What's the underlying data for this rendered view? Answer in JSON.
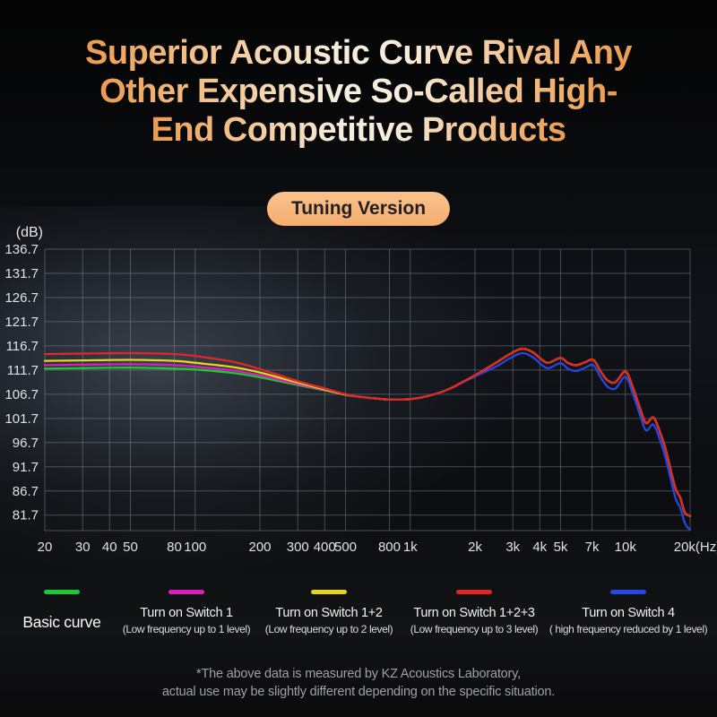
{
  "title": {
    "line1": "Superior Acoustic Curve Rival Any",
    "line2": "Other Expensive So-Called High-",
    "line3": "End Competitive Products"
  },
  "badge": {
    "label": "Tuning Version"
  },
  "chart_data": {
    "type": "line",
    "x_scale": "log",
    "xlim": [
      20,
      20000
    ],
    "ylim": [
      78.5,
      136.7
    ],
    "y_unit": "(dB)",
    "x_unit": "(Hz)",
    "grid": true,
    "legend_position": "bottom",
    "y_ticks": [
      136.7,
      131.7,
      126.7,
      121.7,
      116.7,
      111.7,
      106.7,
      101.7,
      96.7,
      91.7,
      86.7,
      81.7
    ],
    "x_ticks": [
      {
        "v": 20,
        "label": "20"
      },
      {
        "v": 30,
        "label": "30"
      },
      {
        "v": 40,
        "label": "40"
      },
      {
        "v": 50,
        "label": "50"
      },
      {
        "v": 80,
        "label": "80"
      },
      {
        "v": 100,
        "label": "100"
      },
      {
        "v": 200,
        "label": "200"
      },
      {
        "v": 300,
        "label": "300"
      },
      {
        "v": 400,
        "label": "400"
      },
      {
        "v": 500,
        "label": "500"
      },
      {
        "v": 800,
        "label": "800"
      },
      {
        "v": 1000,
        "label": "1k"
      },
      {
        "v": 2000,
        "label": "2k"
      },
      {
        "v": 3000,
        "label": "3k"
      },
      {
        "v": 4000,
        "label": "4k"
      },
      {
        "v": 5000,
        "label": "5k"
      },
      {
        "v": 7000,
        "label": "7k"
      },
      {
        "v": 10000,
        "label": "10k"
      },
      {
        "v": 20000,
        "label": "20k(Hz)"
      }
    ],
    "series": [
      {
        "id": "basic",
        "name": "Basic curve",
        "sub": "",
        "color": "#1fc732",
        "z": 1,
        "points": [
          [
            20,
            112.0
          ],
          [
            30,
            112.1
          ],
          [
            50,
            112.2
          ],
          [
            80,
            112.0
          ],
          [
            100,
            111.8
          ],
          [
            150,
            111.1
          ],
          [
            200,
            110.2
          ],
          [
            300,
            108.6
          ],
          [
            400,
            107.5
          ],
          [
            500,
            106.6
          ],
          [
            600,
            106.1
          ],
          [
            700,
            105.8
          ],
          [
            800,
            105.6
          ],
          [
            1000,
            105.7
          ],
          [
            1200,
            106.3
          ],
          [
            1500,
            107.7
          ],
          [
            2000,
            110.6
          ],
          [
            2500,
            113.2
          ],
          [
            2900,
            115.0
          ],
          [
            3300,
            116.1
          ],
          [
            3700,
            115.4
          ],
          [
            4100,
            113.8
          ],
          [
            4400,
            113.2
          ],
          [
            5000,
            114.2
          ],
          [
            5400,
            113.2
          ],
          [
            5900,
            112.7
          ],
          [
            6500,
            113.3
          ],
          [
            7100,
            113.8
          ],
          [
            7700,
            111.3
          ],
          [
            8300,
            109.5
          ],
          [
            9000,
            109.2
          ],
          [
            10000,
            111.4
          ],
          [
            10800,
            108.3
          ],
          [
            11800,
            103.3
          ],
          [
            12500,
            100.7
          ],
          [
            13500,
            101.9
          ],
          [
            14500,
            98.8
          ],
          [
            15500,
            94.8
          ],
          [
            16500,
            89.8
          ],
          [
            17200,
            86.9
          ],
          [
            18000,
            85.3
          ],
          [
            18800,
            82.4
          ],
          [
            19500,
            81.7
          ],
          [
            20000,
            81.5
          ]
        ]
      },
      {
        "id": "switch1",
        "name": "Turn on Switch 1",
        "sub": "(Low frequency up to 1 level)",
        "color": "#d81fbd",
        "z": 2,
        "points": [
          [
            20,
            112.7
          ],
          [
            30,
            112.8
          ],
          [
            50,
            112.9
          ],
          [
            80,
            112.7
          ],
          [
            100,
            112.4
          ],
          [
            150,
            111.6
          ],
          [
            200,
            110.6
          ],
          [
            300,
            108.8
          ],
          [
            400,
            107.6
          ],
          [
            500,
            106.6
          ],
          [
            600,
            106.1
          ],
          [
            700,
            105.8
          ],
          [
            800,
            105.6
          ],
          [
            1000,
            105.7
          ],
          [
            1200,
            106.3
          ],
          [
            1500,
            107.7
          ],
          [
            2000,
            110.6
          ],
          [
            2500,
            113.2
          ],
          [
            2900,
            115.0
          ],
          [
            3300,
            116.1
          ],
          [
            3700,
            115.4
          ],
          [
            4100,
            113.8
          ],
          [
            4400,
            113.2
          ],
          [
            5000,
            114.2
          ],
          [
            5400,
            113.2
          ],
          [
            5900,
            112.7
          ],
          [
            6500,
            113.3
          ],
          [
            7100,
            113.8
          ],
          [
            7700,
            111.3
          ],
          [
            8300,
            109.5
          ],
          [
            9000,
            109.2
          ],
          [
            10000,
            111.4
          ],
          [
            10800,
            108.3
          ],
          [
            11800,
            103.3
          ],
          [
            12500,
            100.7
          ],
          [
            13500,
            101.9
          ],
          [
            14500,
            98.8
          ],
          [
            15500,
            94.8
          ],
          [
            16500,
            89.8
          ],
          [
            17200,
            86.9
          ],
          [
            18000,
            85.3
          ],
          [
            18800,
            82.4
          ],
          [
            19500,
            81.7
          ],
          [
            20000,
            81.5
          ]
        ]
      },
      {
        "id": "switch12",
        "name": "Turn on Switch 1+2",
        "sub": "(Low frequency up to 2 level)",
        "color": "#e5d421",
        "z": 3,
        "points": [
          [
            20,
            113.6
          ],
          [
            30,
            113.7
          ],
          [
            50,
            113.8
          ],
          [
            80,
            113.6
          ],
          [
            100,
            113.2
          ],
          [
            150,
            112.3
          ],
          [
            200,
            111.2
          ],
          [
            300,
            109.1
          ],
          [
            400,
            107.7
          ],
          [
            500,
            106.6
          ],
          [
            600,
            106.1
          ],
          [
            700,
            105.8
          ],
          [
            800,
            105.6
          ],
          [
            1000,
            105.7
          ],
          [
            1200,
            106.3
          ],
          [
            1500,
            107.7
          ],
          [
            2000,
            110.6
          ],
          [
            2500,
            113.2
          ],
          [
            2900,
            115.0
          ],
          [
            3300,
            116.1
          ],
          [
            3700,
            115.4
          ],
          [
            4100,
            113.8
          ],
          [
            4400,
            113.2
          ],
          [
            5000,
            114.2
          ],
          [
            5400,
            113.2
          ],
          [
            5900,
            112.7
          ],
          [
            6500,
            113.3
          ],
          [
            7100,
            113.8
          ],
          [
            7700,
            111.3
          ],
          [
            8300,
            109.5
          ],
          [
            9000,
            109.2
          ],
          [
            10000,
            111.4
          ],
          [
            10800,
            108.3
          ],
          [
            11800,
            103.3
          ],
          [
            12500,
            100.7
          ],
          [
            13500,
            101.9
          ],
          [
            14500,
            98.8
          ],
          [
            15500,
            94.8
          ],
          [
            16500,
            89.8
          ],
          [
            17200,
            86.9
          ],
          [
            18000,
            85.3
          ],
          [
            18800,
            82.4
          ],
          [
            19500,
            81.7
          ],
          [
            20000,
            81.5
          ]
        ]
      },
      {
        "id": "switch123",
        "name": "Turn on Switch 1+2+3",
        "sub": "(Low frequency up to 3 level)",
        "color": "#e3271f",
        "z": 5,
        "points": [
          [
            20,
            115.0
          ],
          [
            30,
            115.1
          ],
          [
            50,
            115.2
          ],
          [
            80,
            115.0
          ],
          [
            100,
            114.6
          ],
          [
            150,
            113.4
          ],
          [
            200,
            111.9
          ],
          [
            300,
            109.4
          ],
          [
            400,
            107.9
          ],
          [
            500,
            106.7
          ],
          [
            600,
            106.1
          ],
          [
            700,
            105.8
          ],
          [
            800,
            105.6
          ],
          [
            1000,
            105.7
          ],
          [
            1200,
            106.3
          ],
          [
            1500,
            107.7
          ],
          [
            2000,
            110.6
          ],
          [
            2500,
            113.2
          ],
          [
            2900,
            115.0
          ],
          [
            3300,
            116.1
          ],
          [
            3700,
            115.4
          ],
          [
            4100,
            113.8
          ],
          [
            4400,
            113.2
          ],
          [
            5000,
            114.2
          ],
          [
            5400,
            113.2
          ],
          [
            5900,
            112.7
          ],
          [
            6500,
            113.3
          ],
          [
            7100,
            113.8
          ],
          [
            7700,
            111.3
          ],
          [
            8300,
            109.5
          ],
          [
            9000,
            109.2
          ],
          [
            10000,
            111.4
          ],
          [
            10800,
            108.3
          ],
          [
            11800,
            103.3
          ],
          [
            12500,
            100.7
          ],
          [
            13500,
            101.9
          ],
          [
            14500,
            98.8
          ],
          [
            15500,
            94.8
          ],
          [
            16500,
            89.8
          ],
          [
            17200,
            86.9
          ],
          [
            18000,
            85.3
          ],
          [
            18800,
            82.4
          ],
          [
            19500,
            81.7
          ],
          [
            20000,
            81.5
          ]
        ]
      },
      {
        "id": "switch4",
        "name": "Turn on Switch 4",
        "sub": "( high frequency reduced by 1 level)",
        "color": "#2547e2",
        "z": 4,
        "points": [
          [
            20,
            115.0
          ],
          [
            30,
            115.1
          ],
          [
            50,
            115.2
          ],
          [
            80,
            115.0
          ],
          [
            100,
            114.6
          ],
          [
            150,
            113.4
          ],
          [
            200,
            111.9
          ],
          [
            300,
            109.4
          ],
          [
            400,
            107.9
          ],
          [
            500,
            106.7
          ],
          [
            600,
            106.1
          ],
          [
            700,
            105.8
          ],
          [
            800,
            105.6
          ],
          [
            1000,
            105.7
          ],
          [
            1200,
            106.3
          ],
          [
            1500,
            107.7
          ],
          [
            2000,
            110.4
          ],
          [
            2500,
            112.4
          ],
          [
            2900,
            114.1
          ],
          [
            3300,
            115.2
          ],
          [
            3700,
            114.4
          ],
          [
            4100,
            112.7
          ],
          [
            4400,
            112.1
          ],
          [
            5000,
            113.1
          ],
          [
            5400,
            112.0
          ],
          [
            5900,
            111.5
          ],
          [
            6500,
            112.2
          ],
          [
            7100,
            112.7
          ],
          [
            7700,
            110.1
          ],
          [
            8300,
            108.2
          ],
          [
            9000,
            107.9
          ],
          [
            10000,
            110.3
          ],
          [
            10800,
            107.0
          ],
          [
            11800,
            101.9
          ],
          [
            12500,
            99.2
          ],
          [
            13500,
            100.4
          ],
          [
            14500,
            97.2
          ],
          [
            15500,
            93.0
          ],
          [
            16500,
            87.9
          ],
          [
            17200,
            84.9
          ],
          [
            18000,
            83.2
          ],
          [
            18800,
            80.3
          ],
          [
            19500,
            79.1
          ],
          [
            20000,
            78.7
          ]
        ]
      }
    ]
  },
  "footer": {
    "line1": "*The above data is measured by KZ Acoustics Laboratory,",
    "line2": "actual use may be slightly different depending on the specific situation."
  }
}
